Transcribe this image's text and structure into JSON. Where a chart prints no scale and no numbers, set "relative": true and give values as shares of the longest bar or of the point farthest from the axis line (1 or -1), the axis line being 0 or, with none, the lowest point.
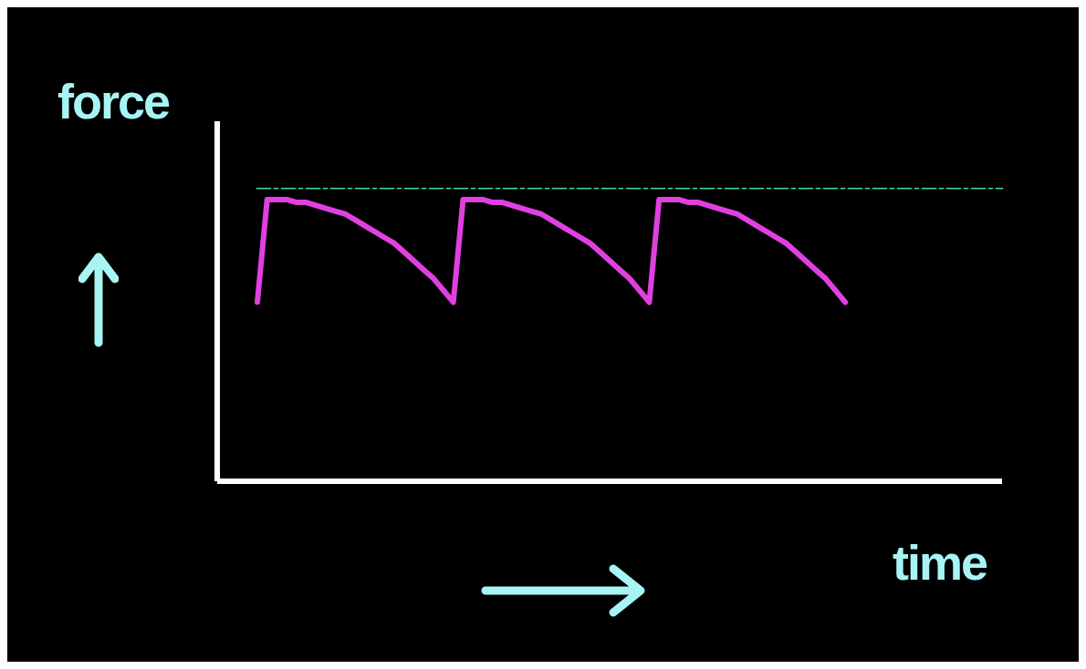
{
  "chart_data": {
    "type": "line",
    "relative": true,
    "xlabel": "time",
    "ylabel": "force",
    "legend": false,
    "grid": false,
    "marker": "none",
    "categories": [
      null,
      null,
      null,
      null,
      null,
      null,
      null,
      null,
      null,
      null,
      null,
      null,
      null,
      null,
      null,
      null,
      null,
      null,
      null,
      null,
      null,
      null,
      null,
      null,
      null,
      null,
      null,
      null,
      null,
      null,
      null,
      null,
      null,
      null,
      null,
      null,
      null,
      null,
      null,
      null,
      null,
      null,
      null,
      null,
      null,
      null,
      null,
      null,
      null,
      null,
      null,
      null,
      null,
      null,
      null,
      null,
      null,
      null,
      null,
      null,
      null,
      null,
      null,
      null,
      null,
      null,
      null,
      null,
      null,
      null,
      null,
      null,
      null,
      null,
      null,
      null,
      null
    ],
    "series": [
      {
        "color": "#e040e0",
        "line_style": "solid",
        "values": [
          0.61,
          0.96,
          0.96,
          0.96,
          0.95,
          0.95,
          0.94,
          0.93,
          0.92,
          0.91,
          0.89,
          0.87,
          0.85,
          0.83,
          0.81,
          0.78,
          0.75,
          0.72,
          0.69,
          0.65,
          0.61,
          0.96,
          0.96,
          0.96,
          0.95,
          0.95,
          0.94,
          0.93,
          0.92,
          0.91,
          0.89,
          0.87,
          0.85,
          0.83,
          0.81,
          0.78,
          0.75,
          0.72,
          0.69,
          0.65,
          0.61,
          0.96,
          0.96,
          0.96,
          0.95,
          0.95,
          0.94,
          0.93,
          0.92,
          0.91,
          0.89,
          0.87,
          0.85,
          0.83,
          0.81,
          0.78,
          0.75,
          0.72,
          0.69,
          0.65,
          0.61,
          null,
          null,
          null,
          null,
          null,
          null,
          null,
          null,
          null,
          null,
          null,
          null,
          null,
          null,
          null,
          null
        ]
      },
      {
        "color": "#40d8b0",
        "line_style": "dashed",
        "values": [
          1,
          1,
          1,
          1,
          1,
          1,
          1,
          1,
          1,
          1,
          1,
          1,
          1,
          1,
          1,
          1,
          1,
          1,
          1,
          1,
          1,
          1,
          1,
          1,
          1,
          1,
          1,
          1,
          1,
          1,
          1,
          1,
          1,
          1,
          1,
          1,
          1,
          1,
          1,
          1,
          1,
          1,
          1,
          1,
          1,
          1,
          1,
          1,
          1,
          1,
          1,
          1,
          1,
          1,
          1,
          1,
          1,
          1,
          1,
          1,
          1,
          1,
          1,
          1,
          1,
          1,
          1,
          1,
          1,
          1,
          1,
          1,
          1,
          1,
          1,
          1,
          1
        ]
      }
    ]
  }
}
